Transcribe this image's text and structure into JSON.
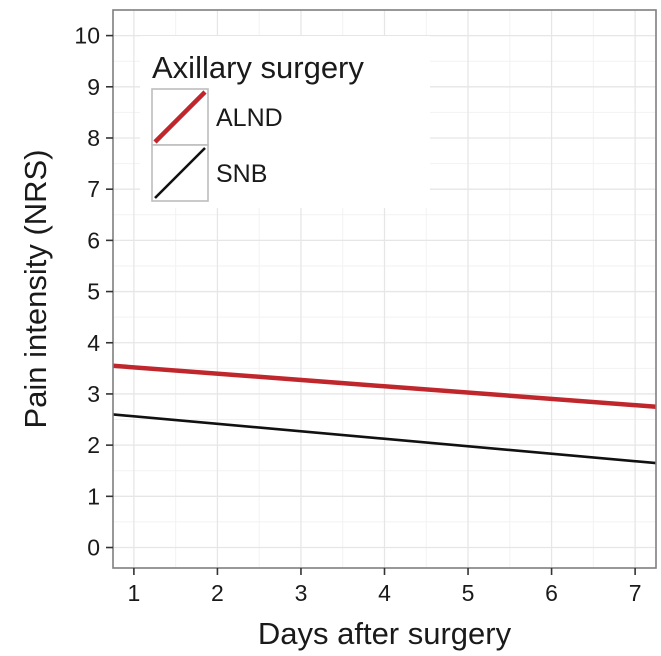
{
  "chart_data": {
    "type": "line",
    "title": "",
    "xlabel": "Days after surgery",
    "ylabel": "Pain intensity (NRS)",
    "xlim": [
      0.75,
      7.25
    ],
    "ylim": [
      -0.4,
      10.5
    ],
    "x_ticks": [
      "1",
      "2",
      "3",
      "4",
      "5",
      "6",
      "7"
    ],
    "y_ticks": [
      "0",
      "1",
      "2",
      "3",
      "4",
      "5",
      "6",
      "7",
      "8",
      "9",
      "10"
    ],
    "grid": true,
    "legend": {
      "title": "Axillary surgery",
      "position": "top-left"
    },
    "series": [
      {
        "name": "ALND",
        "color": "#c0272d",
        "x": [
          0.75,
          7.25
        ],
        "y": [
          3.55,
          2.75
        ]
      },
      {
        "name": "SNB",
        "color": "#111111",
        "x": [
          0.75,
          7.25
        ],
        "y": [
          2.6,
          1.65
        ]
      }
    ]
  }
}
